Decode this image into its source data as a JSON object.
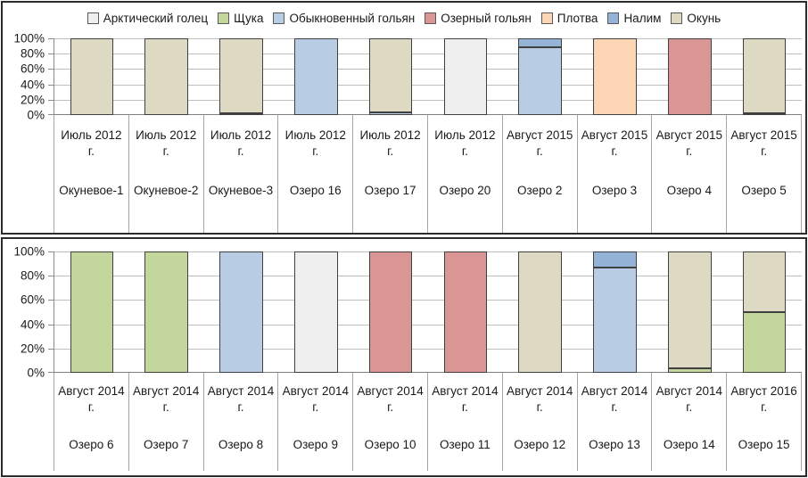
{
  "frame": {
    "panel_border": "#2B2B2B",
    "gridline": "#BFBFBF",
    "axis_line": "#7F7F7F",
    "separator": "#A6A6A6",
    "bar_border": "#404040",
    "background": "#FFFFFF"
  },
  "legend": {
    "position": "top",
    "entries": [
      "Арктический голец",
      "Щука",
      "Обыкновенный гольян",
      "Озерный гольян",
      "Плотва",
      "Налим",
      "Окунь"
    ]
  },
  "chart_data": [
    {
      "type": "bar",
      "stacked": true,
      "percent_stacked": true,
      "title": "",
      "xlabel": "",
      "ylabel": "",
      "ylim": [
        0,
        100
      ],
      "y_ticks": [
        "100%",
        "80%",
        "60%",
        "40%",
        "20%",
        "0%"
      ],
      "grid": true,
      "legend_visible": true,
      "legend_position": "top",
      "categories": [
        {
          "period": "Июль 2012 г.",
          "site": "Окуневое-1"
        },
        {
          "period": "Июль 2012 г.",
          "site": "Окуневое-2"
        },
        {
          "period": "Июль 2012 г.",
          "site": "Окуневое-3"
        },
        {
          "period": "Июль 2012 г.",
          "site": "Озеро 16"
        },
        {
          "period": "Июль 2012 г.",
          "site": "Озеро 17"
        },
        {
          "period": "Июль 2012 г.",
          "site": "Озеро 20"
        },
        {
          "period": "Август 2015 г.",
          "site": "Озеро 2"
        },
        {
          "period": "Август 2015 г.",
          "site": "Озеро 3"
        },
        {
          "period": "Август 2015 г.",
          "site": "Озеро 4"
        },
        {
          "period": "Август 2015 г.",
          "site": "Озеро 5"
        }
      ],
      "series": [
        {
          "name": "Арктический голец",
          "slug": "arctic-char",
          "color": "#EFEFEF",
          "values": [
            0,
            0,
            0,
            0,
            0,
            100,
            0,
            0,
            0,
            0
          ]
        },
        {
          "name": "Щука",
          "slug": "pike",
          "color": "#C3D69B",
          "values": [
            0,
            0,
            0,
            0,
            0,
            0,
            0,
            0,
            0,
            0
          ]
        },
        {
          "name": "Обыкновенный гольян",
          "slug": "common-minnow",
          "color": "#B8CCE4",
          "values": [
            0,
            0,
            0,
            100,
            3,
            0,
            88,
            0,
            0,
            0
          ]
        },
        {
          "name": "Озерный гольян",
          "slug": "lake-minnow",
          "color": "#D99694",
          "values": [
            0,
            0,
            0,
            0,
            0,
            0,
            0,
            0,
            100,
            0
          ]
        },
        {
          "name": "Плотва",
          "slug": "roach",
          "color": "#FCD5B4",
          "values": [
            0,
            0,
            0,
            0,
            0,
            0,
            0,
            100,
            0,
            0
          ]
        },
        {
          "name": "Налим",
          "slug": "burbot",
          "color": "#95B3D7",
          "values": [
            0,
            0,
            2,
            0,
            0,
            0,
            12,
            0,
            0,
            2
          ]
        },
        {
          "name": "Окунь",
          "slug": "perch",
          "color": "#DDD9C3",
          "values": [
            100,
            100,
            98,
            0,
            97,
            0,
            0,
            0,
            0,
            98
          ]
        }
      ]
    },
    {
      "type": "bar",
      "stacked": true,
      "percent_stacked": true,
      "title": "",
      "xlabel": "",
      "ylabel": "",
      "ylim": [
        0,
        100
      ],
      "y_ticks": [
        "100%",
        "80%",
        "60%",
        "40%",
        "20%",
        "0%"
      ],
      "grid": true,
      "legend_visible": false,
      "categories": [
        {
          "period": "Август 2014 г.",
          "site": "Озеро 6"
        },
        {
          "period": "Август 2014 г.",
          "site": "Озеро 7"
        },
        {
          "period": "Август 2014 г.",
          "site": "Озеро 8"
        },
        {
          "period": "Август 2014 г.",
          "site": "Озеро 9"
        },
        {
          "period": "Август 2014 г.",
          "site": "Озеро 10"
        },
        {
          "period": "Август 2014 г.",
          "site": "Озеро 11"
        },
        {
          "period": "Август 2014 г.",
          "site": "Озеро 12"
        },
        {
          "period": "Август 2014 г.",
          "site": "Озеро 13"
        },
        {
          "period": "Август 2014 г.",
          "site": "Озеро 14"
        },
        {
          "period": "Август 2016 г.",
          "site": "Озеро 15"
        }
      ],
      "series": [
        {
          "name": "Арктический голец",
          "slug": "arctic-char",
          "color": "#EFEFEF",
          "values": [
            0,
            0,
            0,
            100,
            0,
            0,
            0,
            0,
            0,
            0
          ]
        },
        {
          "name": "Щука",
          "slug": "pike",
          "color": "#C3D69B",
          "values": [
            100,
            100,
            0,
            0,
            0,
            0,
            0,
            0,
            4,
            50
          ]
        },
        {
          "name": "Обыкновенный гольян",
          "slug": "common-minnow",
          "color": "#B8CCE4",
          "values": [
            0,
            0,
            100,
            0,
            0,
            0,
            0,
            87,
            0,
            0
          ]
        },
        {
          "name": "Озерный гольян",
          "slug": "lake-minnow",
          "color": "#D99694",
          "values": [
            0,
            0,
            0,
            0,
            100,
            100,
            0,
            0,
            0,
            0
          ]
        },
        {
          "name": "Плотва",
          "slug": "roach",
          "color": "#FCD5B4",
          "values": [
            0,
            0,
            0,
            0,
            0,
            0,
            0,
            0,
            0,
            0
          ]
        },
        {
          "name": "Налим",
          "slug": "burbot",
          "color": "#95B3D7",
          "values": [
            0,
            0,
            0,
            0,
            0,
            0,
            0,
            13,
            0,
            0
          ]
        },
        {
          "name": "Окунь",
          "slug": "perch",
          "color": "#DDD9C3",
          "values": [
            0,
            0,
            0,
            0,
            0,
            0,
            100,
            0,
            96,
            50
          ]
        }
      ]
    }
  ]
}
